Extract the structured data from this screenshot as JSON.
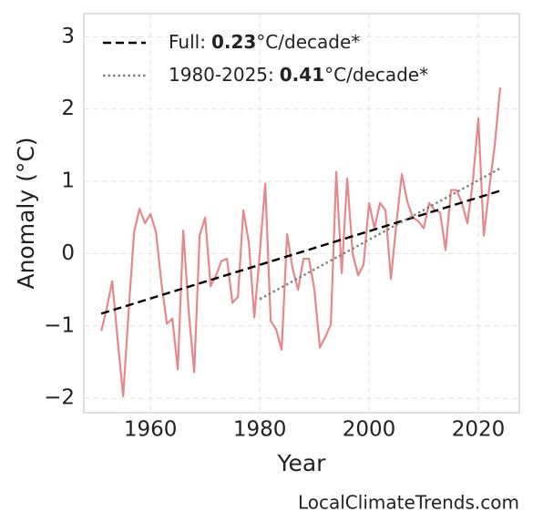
{
  "chart_data": {
    "type": "line",
    "x_label": "Year",
    "y_label": "Anomaly (°C)",
    "xlim": [
      1947.8,
      2027.5
    ],
    "ylim": [
      -2.2,
      3.32
    ],
    "xticks": [
      1960,
      1980,
      2000,
      2020
    ],
    "yticks": [
      {
        "value": -2,
        "label": "−2"
      },
      {
        "value": -1,
        "label": "−1"
      },
      0,
      1,
      2,
      3
    ],
    "grid": true,
    "legend": "upper left",
    "series": [
      {
        "color": "#e8878a",
        "style": "solid",
        "x": [
          1951,
          1952,
          1953,
          1954,
          1955,
          1956,
          1957,
          1958,
          1959,
          1960,
          1961,
          1962,
          1963,
          1964,
          1965,
          1966,
          1967,
          1968,
          1969,
          1970,
          1971,
          1972,
          1973,
          1974,
          1975,
          1976,
          1977,
          1978,
          1979,
          1980,
          1981,
          1982,
          1983,
          1984,
          1985,
          1986,
          1987,
          1988,
          1989,
          1990,
          1991,
          1992,
          1993,
          1994,
          1995,
          1996,
          1997,
          1998,
          1999,
          2000,
          2001,
          2002,
          2003,
          2004,
          2005,
          2006,
          2007,
          2008,
          2009,
          2010,
          2011,
          2012,
          2013,
          2014,
          2015,
          2016,
          2017,
          2018,
          2019,
          2020,
          2021,
          2022,
          2023,
          2024
        ],
        "values": [
          -1.07,
          -0.75,
          -0.38,
          -1.2,
          -1.97,
          -0.8,
          0.3,
          0.62,
          0.42,
          0.55,
          0.3,
          -0.4,
          -0.97,
          -0.9,
          -1.6,
          0.32,
          -0.8,
          -1.64,
          0.25,
          0.5,
          -0.45,
          -0.3,
          -0.1,
          -0.07,
          -0.68,
          -0.6,
          0.6,
          0.15,
          -0.88,
          0.0,
          0.97,
          -0.93,
          -1.05,
          -1.33,
          0.27,
          -0.2,
          -0.5,
          -0.07,
          -0.07,
          -0.5,
          -1.3,
          -1.15,
          -0.98,
          1.13,
          -0.27,
          1.04,
          0.0,
          -0.3,
          -0.15,
          0.7,
          0.35,
          0.7,
          0.6,
          -0.35,
          0.42,
          1.1,
          0.72,
          0.5,
          0.45,
          0.35,
          0.7,
          0.6,
          0.57,
          0.05,
          0.88,
          0.88,
          0.7,
          0.42,
          1.0,
          1.87,
          0.25,
          0.9,
          1.5,
          2.3
        ]
      },
      {
        "name": "Full:",
        "trend": 0.23,
        "unit": "°C/decade*",
        "color": "#000000",
        "style": "dashed",
        "x": [
          1951,
          2024
        ],
        "values": [
          -0.83,
          0.87
        ]
      },
      {
        "name": "1980-2025:",
        "trend": 0.41,
        "unit": "°C/decade*",
        "color": "#808080",
        "style": "dotted",
        "x": [
          1980,
          2024
        ],
        "values": [
          -0.63,
          1.18
        ]
      }
    ]
  },
  "footer": "LocalClimateTrends.com"
}
